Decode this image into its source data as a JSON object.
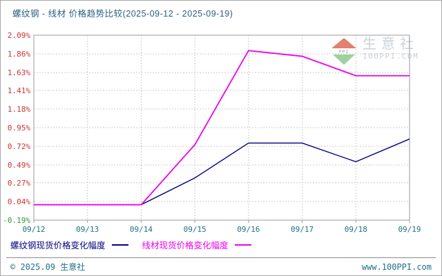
{
  "title": "螺纹钢 - 线材 价格趋势比较(2025-09-12 - 2025-09-19)",
  "chart_data": {
    "type": "line",
    "title": "螺纹钢 - 线材 价格趋势比较(2025-09-12 - 2025-09-19)",
    "categories": [
      "09/12",
      "09/13",
      "09/14",
      "09/15",
      "09/16",
      "09/17",
      "09/18",
      "09/19"
    ],
    "series": [
      {
        "name": "螺纹钢现货价格变化幅度",
        "slug": "rebar-spot-price-change",
        "color": "#000080",
        "values": [
          0.0,
          0.0,
          0.0,
          0.33,
          0.76,
          0.76,
          0.53,
          0.81
        ]
      },
      {
        "name": "线材现货价格变化幅度",
        "slug": "wire-rod-spot-price-change",
        "color": "#EE00EE",
        "values": [
          0.0,
          0.0,
          0.0,
          0.74,
          1.9,
          1.83,
          1.59,
          1.59
        ]
      }
    ],
    "xlabel": "",
    "ylabel": "",
    "unit": "%",
    "ylim": [
      -0.19,
      2.09
    ],
    "y_ticks": {
      "labels": [
        "2.09%",
        "1.86%",
        "1.63%",
        "1.41%",
        "1.18%",
        "0.95%",
        "0.72%",
        "0.49%",
        "0.27%",
        "0.04%",
        "-0.19%"
      ],
      "values": [
        2.09,
        1.86,
        1.63,
        1.41,
        1.18,
        0.95,
        0.72,
        0.49,
        0.27,
        0.04,
        -0.19
      ]
    },
    "grid": true,
    "legend_position": "bottom"
  },
  "watermark": {
    "brand": "生意社",
    "site": "100PPI.COM"
  },
  "legend": {
    "items": [
      {
        "label": "螺纹钢现货价格变化幅度",
        "color": "#000080"
      },
      {
        "label": "线材现货价格变化幅度",
        "color": "#EE00EE"
      }
    ]
  },
  "footer": {
    "copyright": "© 2025.09 生意社",
    "site": "www.100PPI.com"
  },
  "colors": {
    "title_text": "#2A5E7E",
    "axis_date_text": "#1E7086",
    "tick_positive": "#CC3333",
    "tick_negative": "#339933",
    "grid": "#CCCCCC",
    "plot_border": "#999999",
    "rebar_series": "#000080",
    "wire_series": "#EE00EE",
    "watermark_text": "#CBD2D9",
    "footer_text": "#1E7086"
  }
}
